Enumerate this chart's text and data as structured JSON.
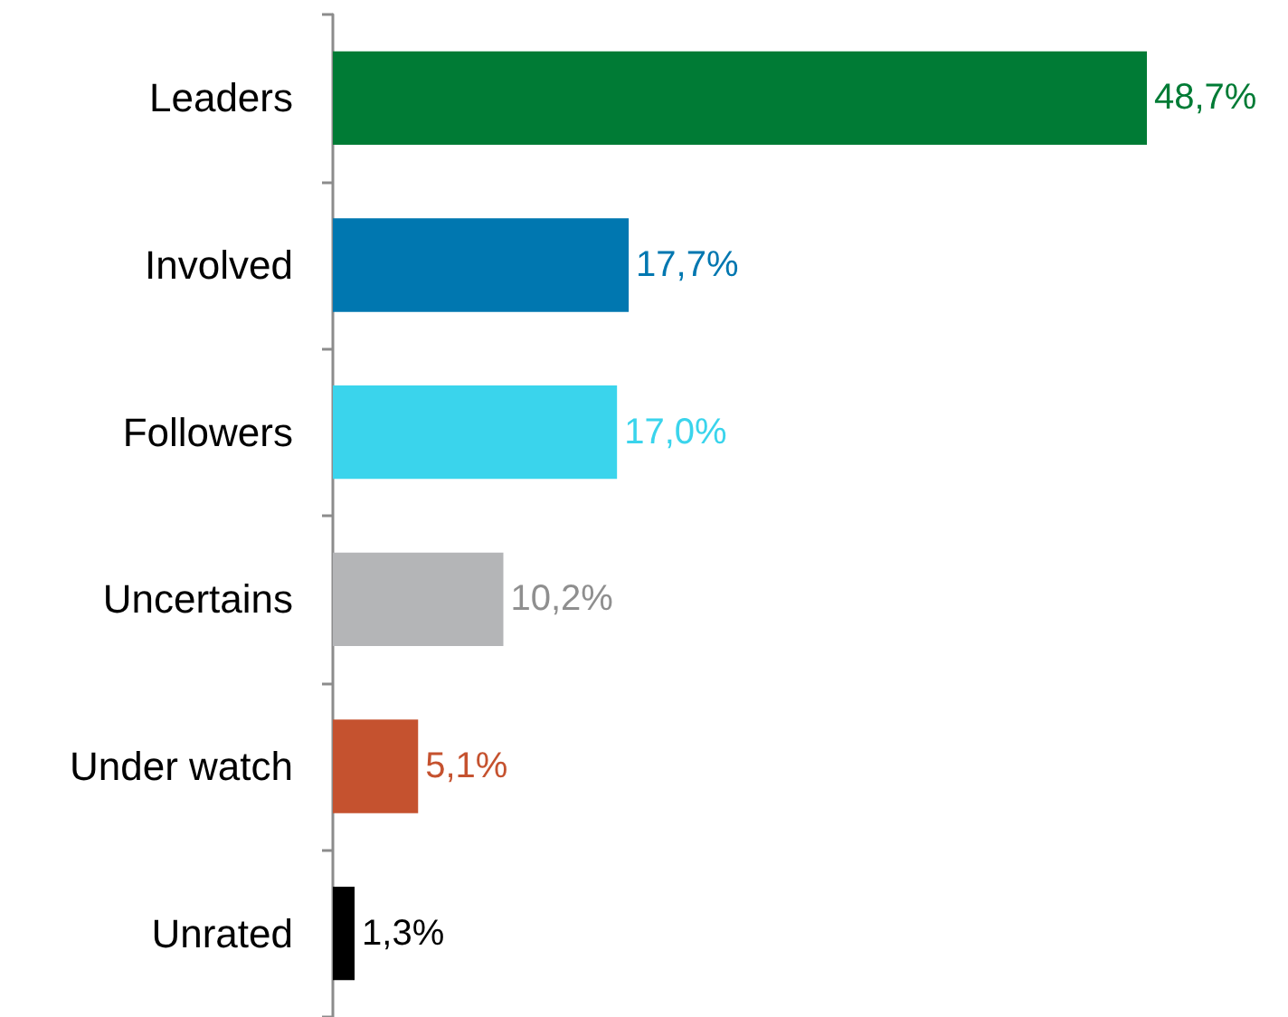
{
  "chart_data": {
    "type": "bar",
    "orientation": "horizontal",
    "categories": [
      "Leaders",
      "Involved",
      "Followers",
      "Uncertains",
      "Under watch",
      "Unrated"
    ],
    "values": [
      48.7,
      17.7,
      17.0,
      10.2,
      5.1,
      1.3
    ],
    "colors": [
      "#007b35",
      "#0077b0",
      "#3ad4ec",
      "#b4b5b7",
      "#c5522f",
      "#000000"
    ],
    "value_labels": [
      "48,7%",
      "17,7%",
      "17,0%",
      "10,2%",
      "5,1%",
      "1,3%"
    ],
    "grid": false
  }
}
